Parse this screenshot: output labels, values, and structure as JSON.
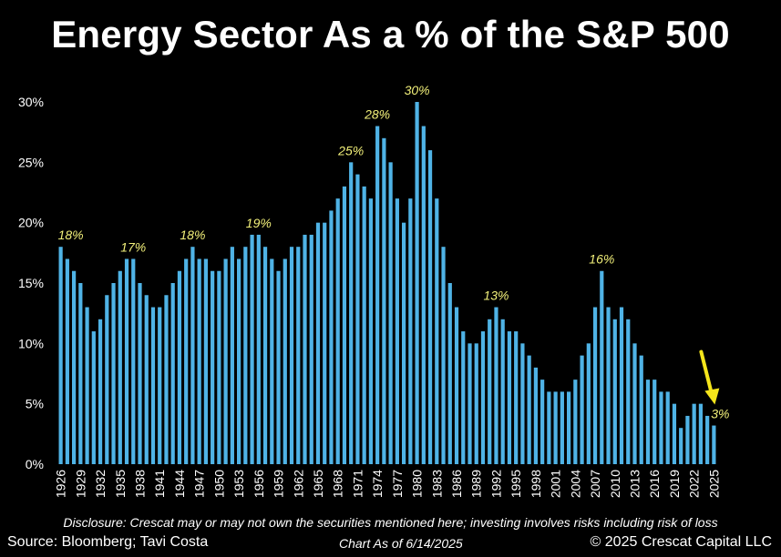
{
  "title": "Energy Sector As a % of the S&P 500",
  "disclosure": "Disclosure: Crescat may or may not own the securities mentioned here; investing involves risks including risk of loss",
  "source": "Source: Bloomberg; Tavi Costa",
  "as_of": "Chart As of 6/14/2025",
  "copyright": "© 2025 Crescat Capital LLC",
  "colors": {
    "background": "#000000",
    "bar": "#4fb3e6",
    "annotation": "#f2f07a",
    "arrow": "#f5e51b",
    "text": "#ffffff"
  },
  "chart_data": {
    "type": "bar",
    "x": [
      1926,
      1927,
      1928,
      1929,
      1930,
      1931,
      1932,
      1933,
      1934,
      1935,
      1936,
      1937,
      1938,
      1939,
      1940,
      1941,
      1942,
      1943,
      1944,
      1945,
      1946,
      1947,
      1948,
      1949,
      1950,
      1951,
      1952,
      1953,
      1954,
      1955,
      1956,
      1957,
      1958,
      1959,
      1960,
      1961,
      1962,
      1963,
      1964,
      1965,
      1966,
      1967,
      1968,
      1969,
      1970,
      1971,
      1972,
      1973,
      1974,
      1975,
      1976,
      1977,
      1978,
      1979,
      1980,
      1981,
      1982,
      1983,
      1984,
      1985,
      1986,
      1987,
      1988,
      1989,
      1990,
      1991,
      1992,
      1993,
      1994,
      1995,
      1996,
      1997,
      1998,
      1999,
      2000,
      2001,
      2002,
      2003,
      2004,
      2005,
      2006,
      2007,
      2008,
      2009,
      2010,
      2011,
      2012,
      2013,
      2014,
      2015,
      2016,
      2017,
      2018,
      2019,
      2020,
      2021,
      2022,
      2023,
      2024,
      2025
    ],
    "values": [
      18,
      17,
      16,
      15,
      13,
      11,
      12,
      14,
      15,
      16,
      17,
      17,
      15,
      14,
      13,
      13,
      14,
      15,
      16,
      17,
      18,
      17,
      17,
      16,
      16,
      17,
      18,
      17,
      18,
      19,
      19,
      18,
      17,
      16,
      17,
      18,
      18,
      19,
      19,
      20,
      20,
      21,
      22,
      23,
      25,
      24,
      23,
      22,
      28,
      27,
      25,
      22,
      20,
      22,
      30,
      28,
      26,
      22,
      18,
      15,
      13,
      11,
      10,
      10,
      11,
      12,
      13,
      12,
      11,
      11,
      10,
      9,
      8,
      7,
      6,
      6,
      6,
      6,
      7,
      9,
      10,
      13,
      16,
      13,
      12,
      13,
      12,
      10,
      9,
      7,
      7,
      6,
      6,
      5,
      3,
      4,
      5,
      5,
      4,
      3.2
    ],
    "xtick_labels": [
      "1926",
      "1929",
      "1932",
      "1935",
      "1938",
      "1941",
      "1944",
      "1947",
      "1950",
      "1953",
      "1956",
      "1959",
      "1962",
      "1965",
      "1968",
      "1971",
      "1974",
      "1977",
      "1980",
      "1983",
      "1986",
      "1989",
      "1992",
      "1995",
      "1998",
      "2001",
      "2004",
      "2007",
      "2010",
      "2013",
      "2016",
      "2019",
      "2022",
      "2025"
    ],
    "ytick_labels": [
      "0%",
      "5%",
      "10%",
      "15%",
      "20%",
      "25%",
      "30%"
    ],
    "ylim": [
      0,
      30
    ],
    "yticks": [
      0,
      5,
      10,
      15,
      20,
      25,
      30
    ],
    "grid": false,
    "annotations": [
      {
        "year": 1926,
        "text": "18%"
      },
      {
        "year": 1937,
        "text": "17%"
      },
      {
        "year": 1946,
        "text": "18%"
      },
      {
        "year": 1956,
        "text": "19%"
      },
      {
        "year": 1970,
        "text": "25%"
      },
      {
        "year": 1974,
        "text": "28%"
      },
      {
        "year": 1980,
        "text": "30%"
      },
      {
        "year": 1992,
        "text": "13%"
      },
      {
        "year": 2008,
        "text": "16%"
      },
      {
        "year": 2025,
        "text": "3%"
      }
    ]
  }
}
